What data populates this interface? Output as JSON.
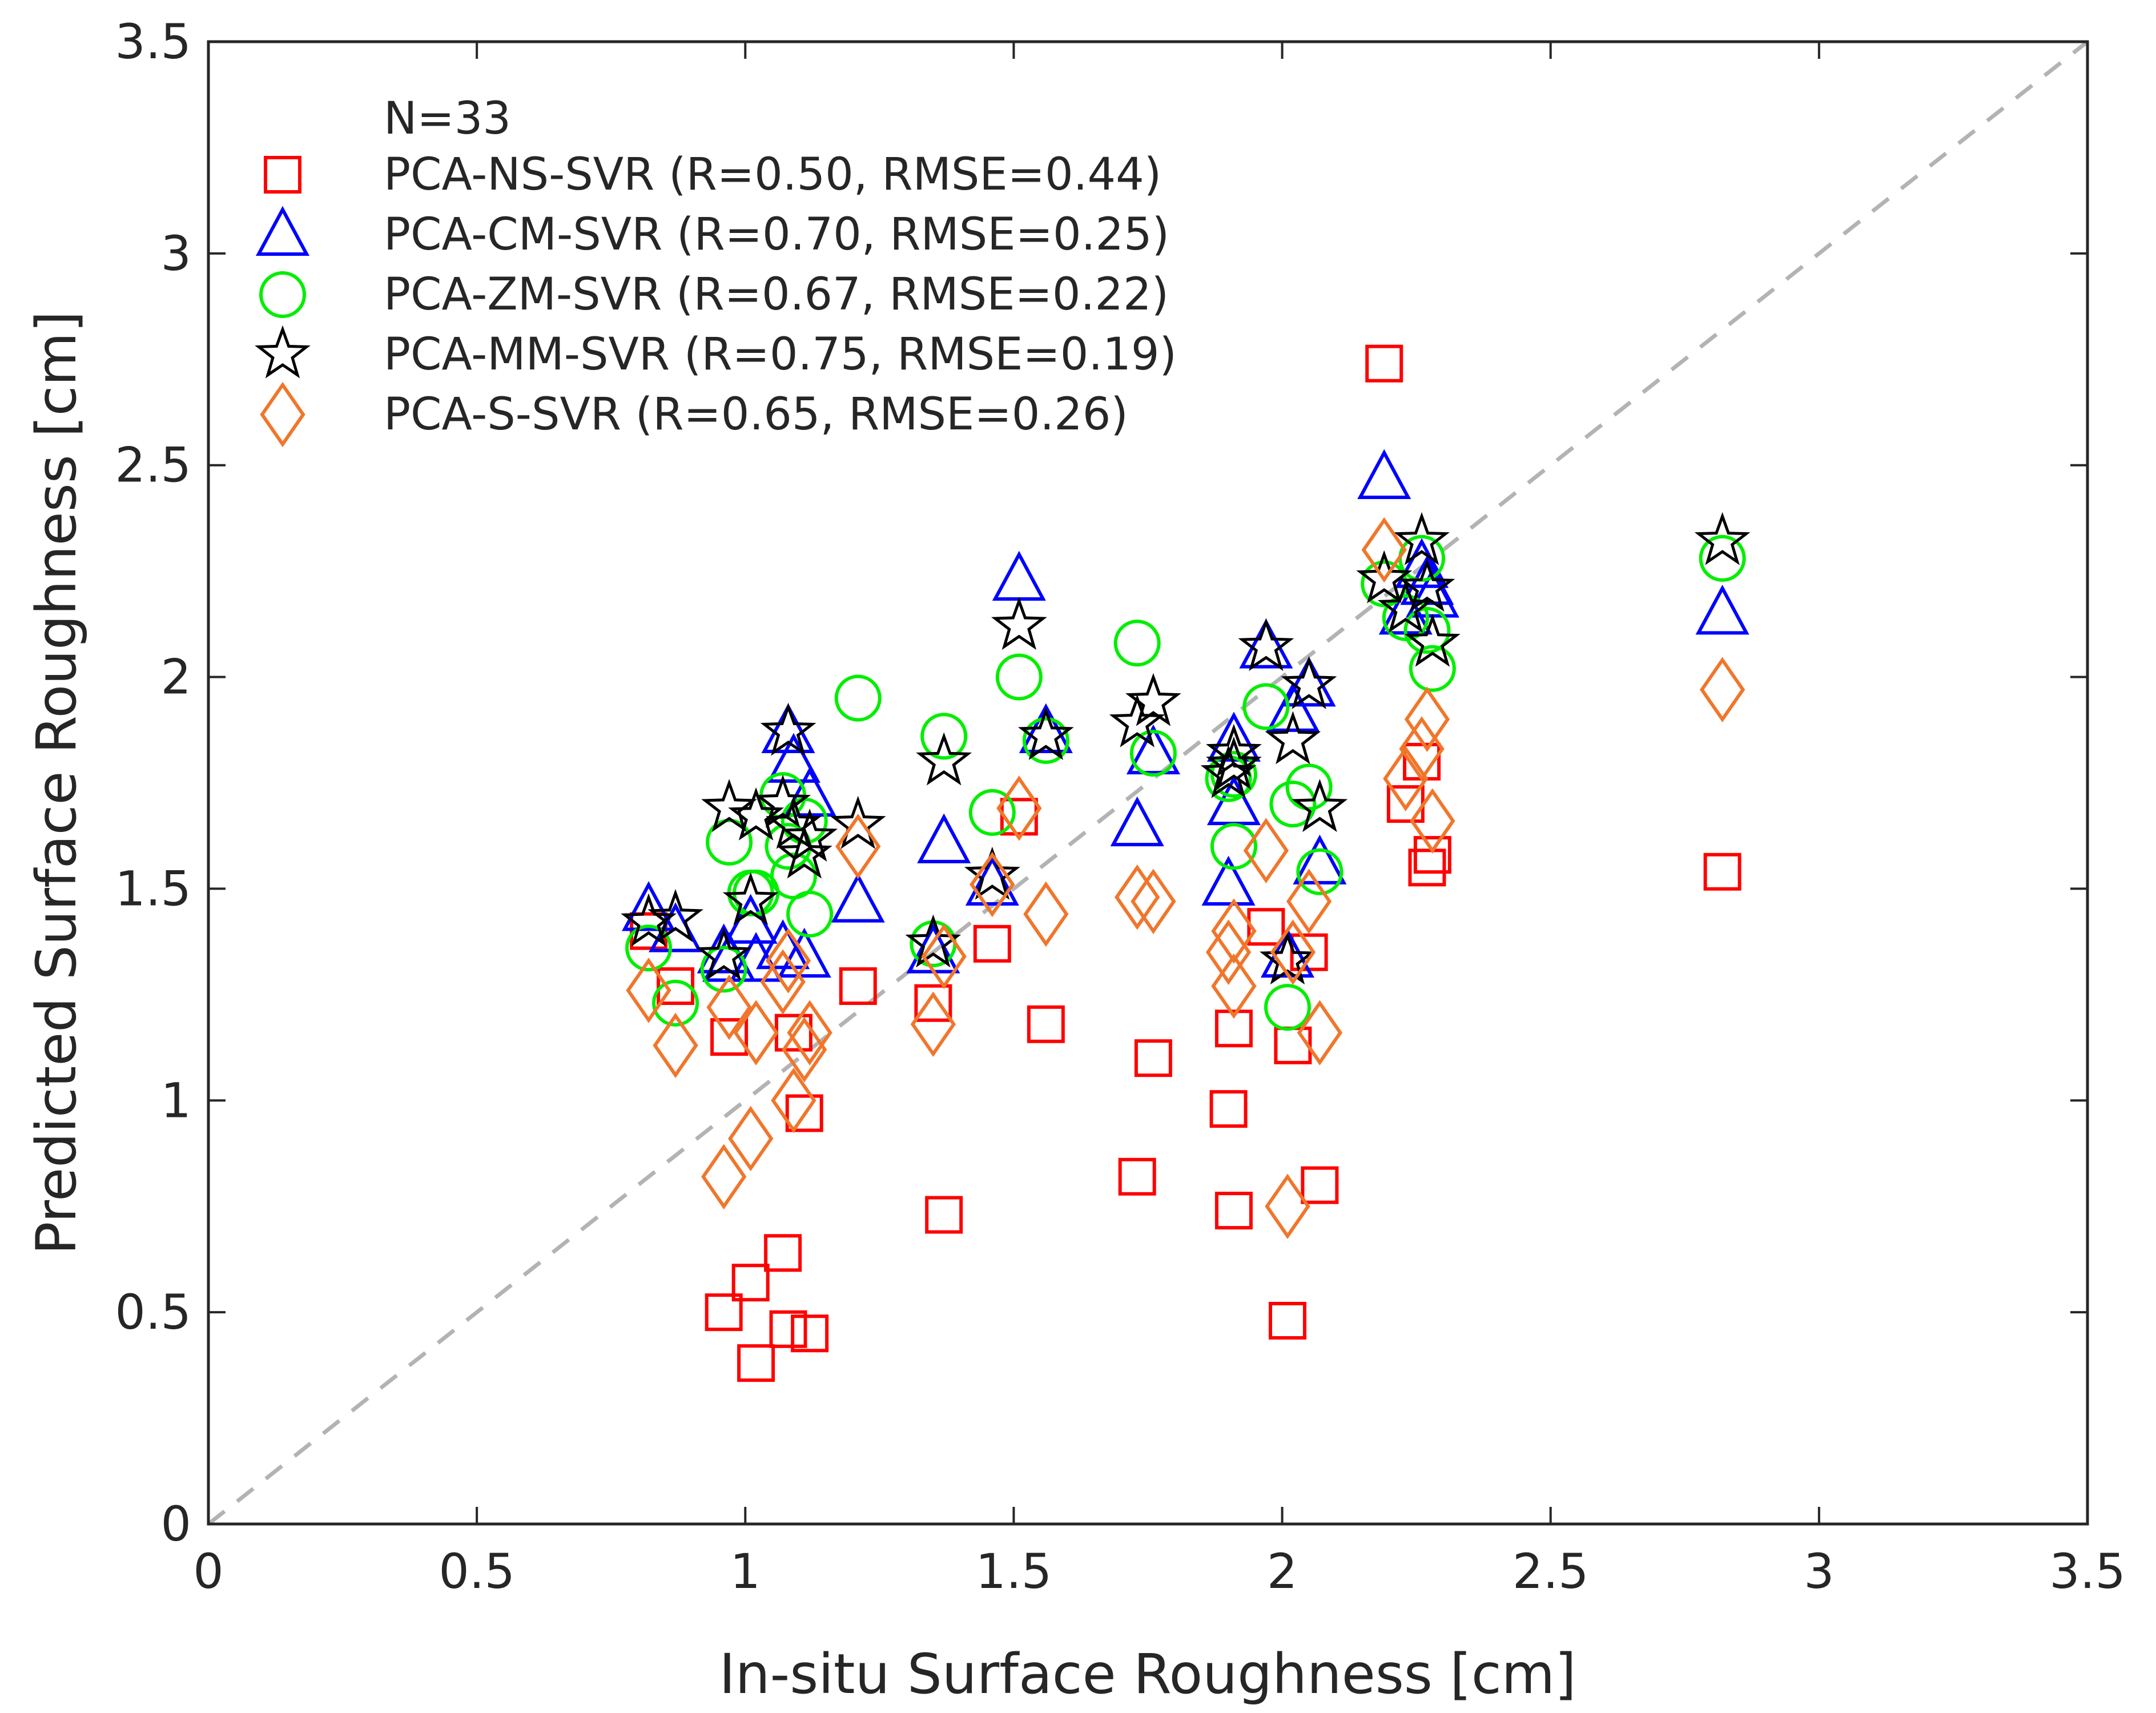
{
  "chart_data": {
    "type": "scatter",
    "title": "",
    "xlabel": "In-situ Surface Roughness [cm]",
    "ylabel": "Predicted Surface Roughness [cm]",
    "xlim": [
      0,
      3.5
    ],
    "ylim": [
      0,
      3.5
    ],
    "xticks": [
      "0",
      "0.5",
      "1",
      "1.5",
      "2",
      "2.5",
      "3",
      "3.5"
    ],
    "yticks": [
      "0",
      "0.5",
      "1",
      "1.5",
      "2",
      "2.5",
      "3",
      "3.5"
    ],
    "grid": false,
    "legend_position": "top-left",
    "legend_header": "N=33",
    "reference_line": {
      "type": "1:1",
      "style": "dashed",
      "color": "#b3b3b3"
    },
    "x": [
      0.82,
      0.87,
      0.96,
      0.97,
      1.01,
      1.02,
      1.07,
      1.08,
      1.09,
      1.11,
      1.12,
      1.21,
      1.35,
      1.37,
      1.46,
      1.51,
      1.56,
      1.73,
      1.76,
      1.9,
      1.91,
      1.91,
      1.97,
      2.01,
      2.02,
      2.05,
      2.07,
      2.19,
      2.23,
      2.26,
      2.27,
      2.28,
      2.82
    ],
    "series": [
      {
        "name": "PCA-NS-SVR (R=0.50, RMSE=0.44)",
        "marker": "square",
        "color": "#ff0000",
        "y": [
          1.4,
          1.27,
          0.5,
          1.15,
          0.57,
          0.38,
          0.64,
          0.46,
          1.16,
          0.97,
          0.45,
          1.27,
          1.23,
          0.73,
          1.37,
          1.67,
          1.18,
          0.82,
          1.1,
          0.98,
          1.17,
          0.74,
          1.41,
          0.48,
          1.13,
          1.35,
          0.8,
          2.74,
          1.7,
          1.8,
          1.55,
          1.58,
          1.54
        ]
      },
      {
        "name": "PCA-CM-SVR (R=0.70, RMSE=0.25)",
        "marker": "triangle",
        "color": "#0000ff",
        "y": [
          1.45,
          1.4,
          1.35,
          1.33,
          1.42,
          1.33,
          1.36,
          1.87,
          1.8,
          1.34,
          1.72,
          1.47,
          1.35,
          1.61,
          1.51,
          2.23,
          1.87,
          1.65,
          1.82,
          1.51,
          1.7,
          1.85,
          2.07,
          1.34,
          1.92,
          1.98,
          1.56,
          2.47,
          2.15,
          2.26,
          2.22,
          2.19,
          2.15
        ]
      },
      {
        "name": "PCA-ZM-SVR (R=0.67, RMSE=0.22)",
        "marker": "circle",
        "color": "#00ee00",
        "y": [
          1.36,
          1.23,
          1.31,
          1.61,
          1.49,
          1.49,
          1.72,
          1.6,
          1.53,
          1.66,
          1.44,
          1.95,
          1.37,
          1.86,
          1.68,
          2.0,
          1.85,
          2.08,
          1.82,
          1.76,
          1.6,
          1.77,
          1.93,
          1.22,
          1.7,
          1.74,
          1.54,
          2.22,
          2.14,
          2.28,
          2.11,
          2.02,
          2.28
        ]
      },
      {
        "name": "PCA-MM-SVR (R=0.75, RMSE=0.19)",
        "marker": "star",
        "color": "#000000",
        "y": [
          1.42,
          1.43,
          1.34,
          1.69,
          1.47,
          1.67,
          1.7,
          1.87,
          1.65,
          1.58,
          1.62,
          1.65,
          1.37,
          1.8,
          1.53,
          2.12,
          1.86,
          1.89,
          1.94,
          1.77,
          1.82,
          1.79,
          2.07,
          1.33,
          1.85,
          1.98,
          1.69,
          2.23,
          2.16,
          2.32,
          2.21,
          2.08,
          2.32
        ]
      },
      {
        "name": "PCA-S-SVR (R=0.65, RMSE=0.26)",
        "marker": "diamond",
        "color": "#f0762b",
        "y": [
          1.26,
          1.13,
          0.82,
          1.22,
          0.91,
          1.16,
          1.28,
          1.33,
          1.0,
          1.12,
          1.16,
          1.6,
          1.18,
          1.34,
          1.51,
          1.69,
          1.44,
          1.48,
          1.47,
          1.35,
          1.27,
          1.4,
          1.59,
          0.75,
          1.35,
          1.47,
          1.16,
          2.3,
          1.76,
          1.83,
          1.9,
          1.66,
          1.97
        ]
      }
    ]
  }
}
